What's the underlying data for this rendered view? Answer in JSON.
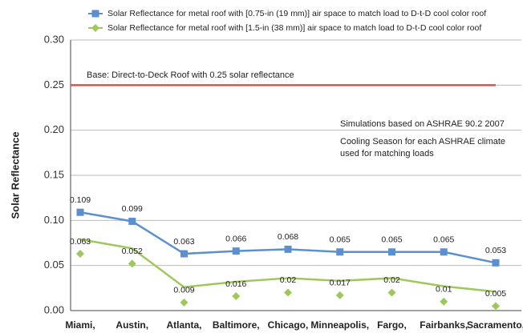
{
  "chart_data": {
    "type": "line",
    "ylabel": "Solar Reflectance",
    "categories": [
      "Miami,",
      "Austin,",
      "Atlanta,",
      "Baltimore,",
      "Chicago,",
      "Minneapolis,",
      "Fargo,",
      "Fairbanks,",
      "Sacramento,"
    ],
    "series": [
      {
        "name": "Solar Reflectance for metal roof with [0.75-in (19 mm)] air space to match load to D-t-D cool color roof",
        "color": "#5b8fd0",
        "marker": "square",
        "values": [
          0.109,
          0.099,
          0.063,
          0.066,
          0.068,
          0.065,
          0.065,
          0.065,
          0.053
        ]
      },
      {
        "name": "Solar Reflectance for metal roof with [1.5-in (38 mm)] air space to match load to D-t-D cool color roof",
        "color": "#9ec95a",
        "marker": "diamond",
        "values": [
          0.063,
          0.052,
          0.009,
          0.016,
          0.02,
          0.017,
          0.02,
          0.01,
          0.005
        ],
        "line_values": [
          0.079,
          0.069,
          0.026,
          0.032,
          0.036,
          0.033,
          0.036,
          0.027,
          0.021
        ]
      }
    ],
    "reference_line": {
      "value": 0.25,
      "label": "Base: Direct-to-Deck Roof with 0.25 solar reflectance",
      "color": "#e0504a"
    },
    "annotations": [
      "Simulations based on ASHRAE 90.2 2007",
      "Cooling Season for each ASHRAE climate",
      "used for matching loads"
    ],
    "ylim": [
      0,
      0.3
    ],
    "yticks": [
      {
        "value": 0,
        "label": "0.00"
      },
      {
        "value": 0.05,
        "label": "0.05"
      },
      {
        "value": 0.1,
        "label": "0.10"
      },
      {
        "value": 0.15,
        "label": "0.15"
      },
      {
        "value": 0.2,
        "label": "0.20"
      },
      {
        "value": 0.25,
        "label": "0.25"
      },
      {
        "value": 0.3,
        "label": "0.30"
      }
    ],
    "grid": true
  }
}
